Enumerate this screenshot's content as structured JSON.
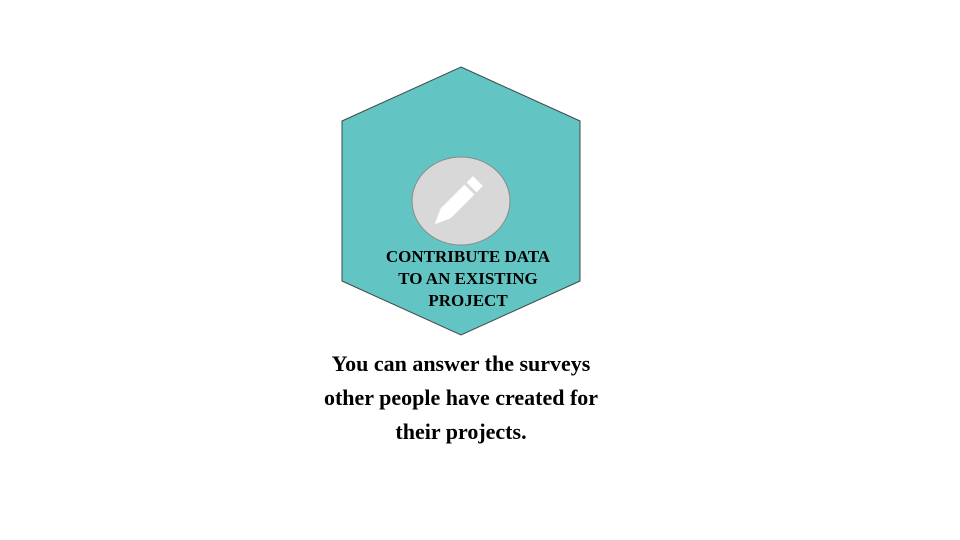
{
  "card": {
    "title": "CONTRIBUTE  DATA\nTO AN EXISTING\nPROJECT",
    "icon": "pencil-icon",
    "hex_color": "#63c5c3",
    "icon_circle_color": "#d8d8d8"
  },
  "description": "You can answer the surveys\nother people have created for\ntheir projects."
}
